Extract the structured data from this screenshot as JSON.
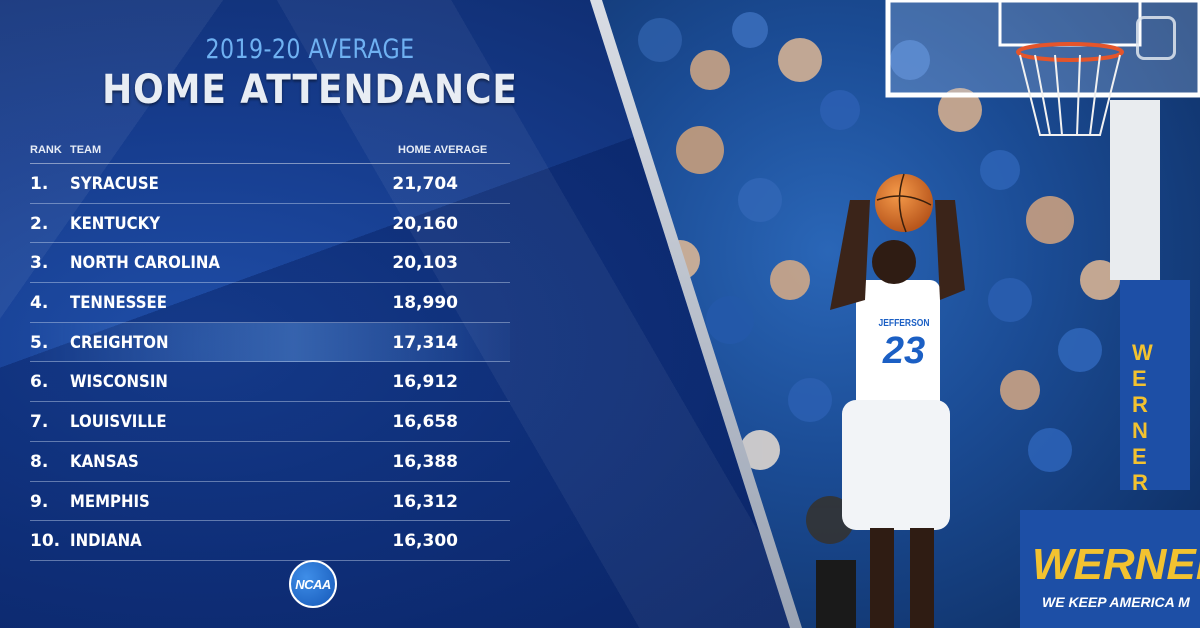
{
  "header": {
    "subtitle": "2019-20 AVERAGE",
    "title": "HOME ATTENDANCE"
  },
  "table": {
    "columns": {
      "rank": "RANK",
      "team": "TEAM",
      "average": "HOME AVERAGE"
    },
    "highlight_index": 4,
    "rows": [
      {
        "rank": "1.",
        "team": "SYRACUSE",
        "average": "21,704"
      },
      {
        "rank": "2.",
        "team": "KENTUCKY",
        "average": "20,160"
      },
      {
        "rank": "3.",
        "team": "NORTH CAROLINA",
        "average": "20,103"
      },
      {
        "rank": "4.",
        "team": "TENNESSEE",
        "average": "18,990"
      },
      {
        "rank": "5.",
        "team": "CREIGHTON",
        "average": "17,314"
      },
      {
        "rank": "6.",
        "team": "WISCONSIN",
        "average": "16,912"
      },
      {
        "rank": "7.",
        "team": "LOUISVILLE",
        "average": "16,658"
      },
      {
        "rank": "8.",
        "team": "KANSAS",
        "average": "16,388"
      },
      {
        "rank": "9.",
        "team": "MEMPHIS",
        "average": "16,312"
      },
      {
        "rank": "10.",
        "team": "INDIANA",
        "average": "16,300"
      }
    ]
  },
  "logo": {
    "text": "NCAA"
  },
  "photo": {
    "jersey_name": "JEFFERSON",
    "jersey_number": "23",
    "sign_vertical": "WERNER",
    "sign_banner": "WERNER",
    "sign_tagline": "WE KEEP AMERICA M"
  },
  "colors": {
    "panel_blue": "#163c8d",
    "subtitle_blue": "#6fb1f2",
    "sign_yellow": "#f2c230",
    "jersey_blue": "#1b5fc4"
  }
}
